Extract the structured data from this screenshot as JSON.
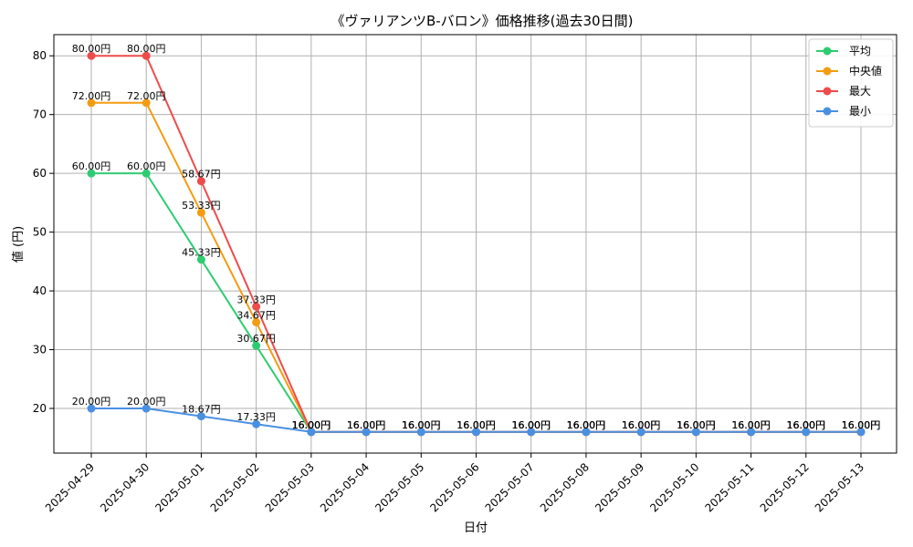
{
  "chart_data": {
    "type": "line",
    "title": "《ヴァリアンツB-バロン》価格推移(過去30日間)",
    "xlabel": "日付",
    "ylabel": "値 (円)",
    "ylim": [
      12.4,
      83.6
    ],
    "yticks": [
      20,
      30,
      40,
      50,
      60,
      70,
      80
    ],
    "grid": true,
    "legend_position": "top-right",
    "categories": [
      "2025-04-29",
      "2025-04-30",
      "2025-05-01",
      "2025-05-02",
      "2025-05-03",
      "2025-05-04",
      "2025-05-05",
      "2025-05-06",
      "2025-05-07",
      "2025-05-08",
      "2025-05-09",
      "2025-05-10",
      "2025-05-11",
      "2025-05-12",
      "2025-05-13"
    ],
    "series": [
      {
        "name": "平均",
        "color": "#2ecc71",
        "values": [
          60.0,
          60.0,
          45.33,
          30.67,
          16.0,
          16.0,
          16.0,
          16.0,
          16.0,
          16.0,
          16.0,
          16.0,
          16.0,
          16.0,
          16.0
        ]
      },
      {
        "name": "中央値",
        "color": "#f39c12",
        "values": [
          72.0,
          72.0,
          53.33,
          34.67,
          16.0,
          16.0,
          16.0,
          16.0,
          16.0,
          16.0,
          16.0,
          16.0,
          16.0,
          16.0,
          16.0
        ]
      },
      {
        "name": "最大",
        "color": "#ef4b4b",
        "values": [
          80.0,
          80.0,
          58.67,
          37.33,
          16.0,
          16.0,
          16.0,
          16.0,
          16.0,
          16.0,
          16.0,
          16.0,
          16.0,
          16.0,
          16.0
        ]
      },
      {
        "name": "最小",
        "color": "#4a90e2",
        "values": [
          20.0,
          20.0,
          18.67,
          17.33,
          16.0,
          16.0,
          16.0,
          16.0,
          16.0,
          16.0,
          16.0,
          16.0,
          16.0,
          16.0,
          16.0
        ]
      }
    ],
    "data_label_suffix": "円"
  }
}
